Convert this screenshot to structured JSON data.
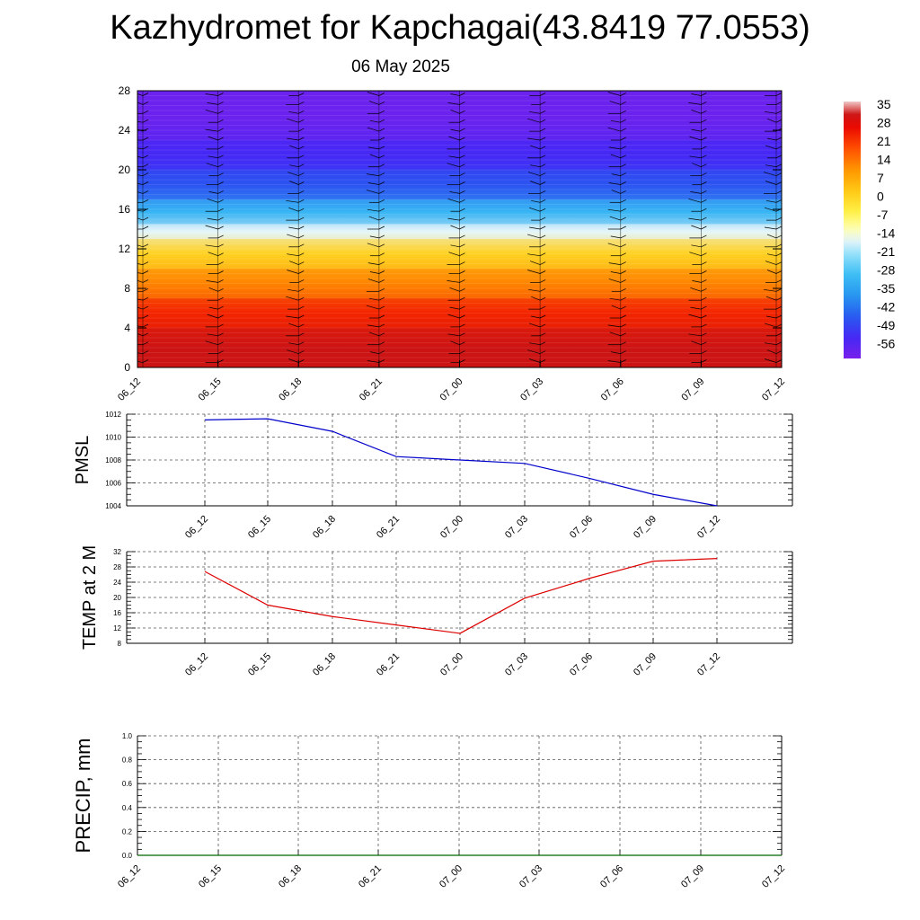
{
  "header": {
    "title": "Kazhydromet for Kapchagai(43.8419 77.0553)",
    "date": "06 May 2025"
  },
  "colors": {
    "pmsl_line": "#0000cc",
    "temp_line": "#dd0000",
    "precip_line": "#006600",
    "grid": "#555555"
  },
  "chart_data": [
    {
      "type": "heatmap",
      "title": "",
      "xlabel": "",
      "ylabel": "",
      "x": [
        "06_12",
        "06_15",
        "06_18",
        "06_21",
        "07_00",
        "07_03",
        "07_06",
        "07_09",
        "07_12"
      ],
      "yticks": [
        0,
        4,
        8,
        12,
        16,
        20,
        24,
        28
      ],
      "ylim": [
        0,
        28
      ],
      "colorbar": {
        "labels": [
          "35",
          "28",
          "21",
          "14",
          "7",
          "0",
          "-7",
          "-14",
          "-21",
          "-28",
          "-35",
          "-42",
          "-49",
          "-56"
        ],
        "range": [
          -60,
          38
        ]
      },
      "bands": [
        {
          "y": [
            0,
            4
          ],
          "value": 33
        },
        {
          "y": [
            4,
            7
          ],
          "value": 25
        },
        {
          "y": [
            7,
            10
          ],
          "value": 14
        },
        {
          "y": [
            10,
            13
          ],
          "value": 2
        },
        {
          "y": [
            13,
            14.5
          ],
          "value": -15
        },
        {
          "y": [
            14.5,
            17
          ],
          "value": -30
        },
        {
          "y": [
            17,
            20
          ],
          "value": -45
        },
        {
          "y": [
            20,
            23
          ],
          "value": -52
        },
        {
          "y": [
            23,
            28
          ],
          "value": -58
        }
      ],
      "wind_barbs": "present"
    },
    {
      "type": "line",
      "ylabel": "PMSL",
      "x": [
        "06_12",
        "06_15",
        "06_18",
        "06_21",
        "07_00",
        "07_03",
        "07_06",
        "07_09",
        "07_12"
      ],
      "yticks": [
        1004,
        1006,
        1008,
        1010,
        1012
      ],
      "ylim": [
        1004,
        1012
      ],
      "series": [
        {
          "values": [
            1011.5,
            1011.6,
            1010.5,
            1008.3,
            1008.0,
            1007.7,
            1006.4,
            1005.0,
            1004.0
          ]
        }
      ],
      "grid": true
    },
    {
      "type": "line",
      "ylabel": "TEMP at 2 M",
      "x": [
        "06_12",
        "06_15",
        "06_18",
        "06_21",
        "07_00",
        "07_03",
        "07_06",
        "07_09",
        "07_12"
      ],
      "yticks": [
        8,
        12,
        16,
        20,
        24,
        28,
        32
      ],
      "ylim": [
        8,
        32
      ],
      "series": [
        {
          "values": [
            26.8,
            18.0,
            15.0,
            12.8,
            10.6,
            19.8,
            25.0,
            29.5,
            30.2
          ]
        }
      ],
      "grid": true
    },
    {
      "type": "line",
      "ylabel": "PRECIP, mm",
      "x": [
        "06_12",
        "06_15",
        "06_18",
        "06_21",
        "07_00",
        "07_03",
        "07_06",
        "07_09",
        "07_12"
      ],
      "yticks": [
        "0.0",
        "0.2",
        "0.4",
        "0.6",
        "0.8",
        "1.0"
      ],
      "ylim": [
        0,
        1
      ],
      "series": [
        {
          "values": [
            0,
            0,
            0,
            0,
            0,
            0,
            0,
            0,
            0
          ]
        }
      ],
      "grid": true
    }
  ]
}
